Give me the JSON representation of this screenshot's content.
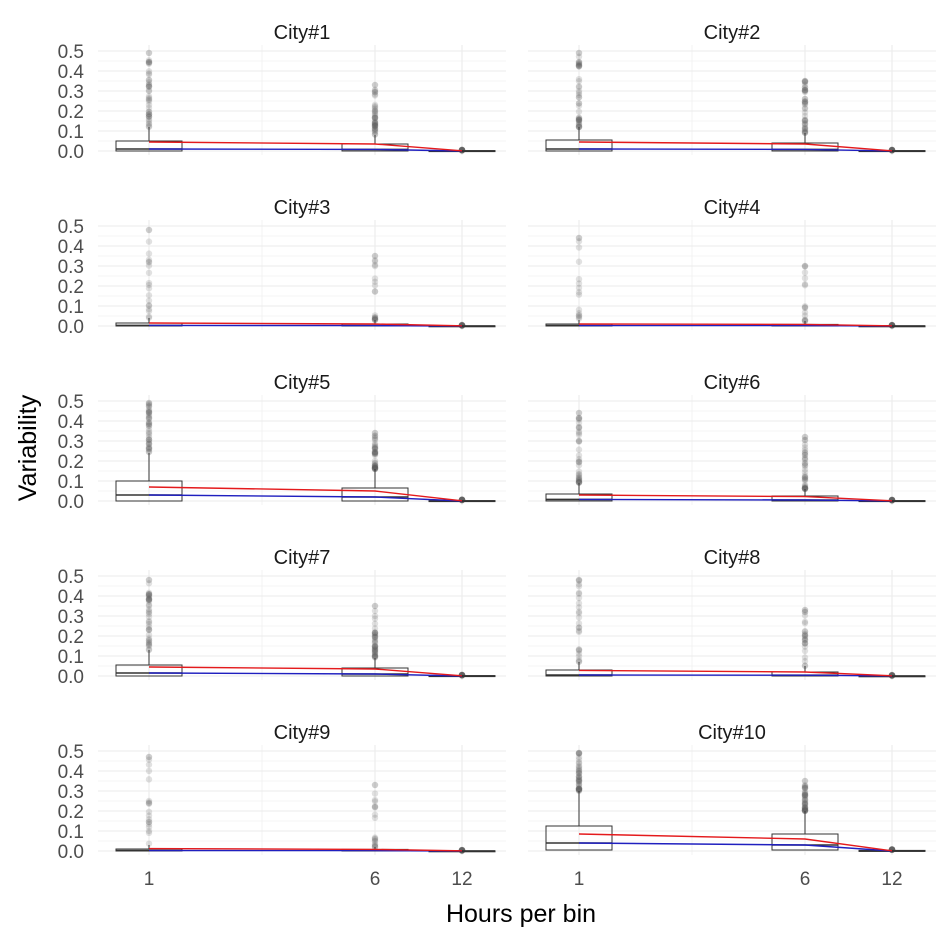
{
  "chart_data": {
    "type": "box",
    "xlabel": "Hours per bin",
    "ylabel": "Variability",
    "x_ticks": [
      "1",
      "6",
      "12"
    ],
    "x_values": [
      1,
      6,
      12
    ],
    "y_ticks": [
      "0.0",
      "0.1",
      "0.2",
      "0.3",
      "0.4",
      "0.5"
    ],
    "ylim": [
      0,
      0.5
    ],
    "grid": true,
    "colors": {
      "mean_line": "#e41a1c",
      "median_line": "#1f1fbf",
      "box": "#333333",
      "outlier": "#595959",
      "grid": "#ebebeb"
    },
    "facets": [
      {
        "title": "City#1",
        "boxes": [
          {
            "x": 1,
            "q1": 0.0,
            "median": 0.01,
            "q3": 0.05,
            "whisker_high": 0.12,
            "mean": 0.045,
            "outlier_max": 0.49,
            "outlier_density": 1.0
          },
          {
            "x": 6,
            "q1": 0.0,
            "median": 0.008,
            "q3": 0.035,
            "whisker_high": 0.08,
            "mean": 0.035,
            "outlier_max": 0.33,
            "outlier_density": 1.0
          },
          {
            "x": 12,
            "q1": 0.0,
            "median": 0.0,
            "q3": 0.002,
            "whisker_high": 0.003,
            "mean": 0.001,
            "outlier_max": 0.006,
            "outlier_density": 0.3
          }
        ]
      },
      {
        "title": "City#2",
        "boxes": [
          {
            "x": 1,
            "q1": 0.0,
            "median": 0.01,
            "q3": 0.055,
            "whisker_high": 0.12,
            "mean": 0.045,
            "outlier_max": 0.49,
            "outlier_density": 1.0
          },
          {
            "x": 6,
            "q1": 0.0,
            "median": 0.008,
            "q3": 0.04,
            "whisker_high": 0.09,
            "mean": 0.035,
            "outlier_max": 0.35,
            "outlier_density": 1.0
          },
          {
            "x": 12,
            "q1": 0.0,
            "median": 0.0,
            "q3": 0.002,
            "whisker_high": 0.003,
            "mean": 0.001,
            "outlier_max": 0.006,
            "outlier_density": 0.3
          }
        ]
      },
      {
        "title": "City#3",
        "boxes": [
          {
            "x": 1,
            "q1": 0.0,
            "median": 0.003,
            "q3": 0.015,
            "whisker_high": 0.04,
            "mean": 0.015,
            "outlier_max": 0.48,
            "outlier_density": 0.45
          },
          {
            "x": 6,
            "q1": 0.0,
            "median": 0.002,
            "q3": 0.01,
            "whisker_high": 0.03,
            "mean": 0.01,
            "outlier_max": 0.35,
            "outlier_density": 0.45
          },
          {
            "x": 12,
            "q1": 0.0,
            "median": 0.0,
            "q3": 0.001,
            "whisker_high": 0.002,
            "mean": 0.001,
            "outlier_max": 0.005,
            "outlier_density": 0.3
          }
        ]
      },
      {
        "title": "City#4",
        "boxes": [
          {
            "x": 1,
            "q1": 0.0,
            "median": 0.002,
            "q3": 0.01,
            "whisker_high": 0.03,
            "mean": 0.01,
            "outlier_max": 0.44,
            "outlier_density": 0.35
          },
          {
            "x": 6,
            "q1": 0.0,
            "median": 0.002,
            "q3": 0.008,
            "whisker_high": 0.025,
            "mean": 0.008,
            "outlier_max": 0.3,
            "outlier_density": 0.35
          },
          {
            "x": 12,
            "q1": 0.0,
            "median": 0.0,
            "q3": 0.001,
            "whisker_high": 0.002,
            "mean": 0.001,
            "outlier_max": 0.005,
            "outlier_density": 0.3
          }
        ]
      },
      {
        "title": "City#5",
        "boxes": [
          {
            "x": 1,
            "q1": 0.0,
            "median": 0.03,
            "q3": 0.1,
            "whisker_high": 0.24,
            "mean": 0.07,
            "outlier_max": 0.49,
            "outlier_density": 1.0
          },
          {
            "x": 6,
            "q1": 0.0,
            "median": 0.02,
            "q3": 0.065,
            "whisker_high": 0.16,
            "mean": 0.05,
            "outlier_max": 0.34,
            "outlier_density": 1.0
          },
          {
            "x": 12,
            "q1": 0.0,
            "median": 0.0,
            "q3": 0.002,
            "whisker_high": 0.004,
            "mean": 0.001,
            "outlier_max": 0.007,
            "outlier_density": 0.3
          }
        ]
      },
      {
        "title": "City#6",
        "boxes": [
          {
            "x": 1,
            "q1": 0.0,
            "median": 0.008,
            "q3": 0.035,
            "whisker_high": 0.09,
            "mean": 0.03,
            "outlier_max": 0.44,
            "outlier_density": 0.9
          },
          {
            "x": 6,
            "q1": 0.0,
            "median": 0.005,
            "q3": 0.025,
            "whisker_high": 0.06,
            "mean": 0.022,
            "outlier_max": 0.32,
            "outlier_density": 0.9
          },
          {
            "x": 12,
            "q1": 0.0,
            "median": 0.0,
            "q3": 0.002,
            "whisker_high": 0.003,
            "mean": 0.001,
            "outlier_max": 0.006,
            "outlier_density": 0.3
          }
        ]
      },
      {
        "title": "City#7",
        "boxes": [
          {
            "x": 1,
            "q1": 0.0,
            "median": 0.015,
            "q3": 0.055,
            "whisker_high": 0.13,
            "mean": 0.045,
            "outlier_max": 0.48,
            "outlier_density": 1.0
          },
          {
            "x": 6,
            "q1": 0.0,
            "median": 0.01,
            "q3": 0.04,
            "whisker_high": 0.09,
            "mean": 0.035,
            "outlier_max": 0.35,
            "outlier_density": 1.0
          },
          {
            "x": 12,
            "q1": 0.0,
            "median": 0.0,
            "q3": 0.002,
            "whisker_high": 0.003,
            "mean": 0.001,
            "outlier_max": 0.006,
            "outlier_density": 0.3
          }
        ]
      },
      {
        "title": "City#8",
        "boxes": [
          {
            "x": 1,
            "q1": 0.0,
            "median": 0.005,
            "q3": 0.03,
            "whisker_high": 0.07,
            "mean": 0.028,
            "outlier_max": 0.48,
            "outlier_density": 0.6
          },
          {
            "x": 6,
            "q1": 0.0,
            "median": 0.004,
            "q3": 0.02,
            "whisker_high": 0.05,
            "mean": 0.02,
            "outlier_max": 0.33,
            "outlier_density": 0.6
          },
          {
            "x": 12,
            "q1": 0.0,
            "median": 0.0,
            "q3": 0.001,
            "whisker_high": 0.002,
            "mean": 0.001,
            "outlier_max": 0.005,
            "outlier_density": 0.3
          }
        ]
      },
      {
        "title": "City#9",
        "boxes": [
          {
            "x": 1,
            "q1": 0.0,
            "median": 0.002,
            "q3": 0.01,
            "whisker_high": 0.03,
            "mean": 0.012,
            "outlier_max": 0.47,
            "outlier_density": 0.45
          },
          {
            "x": 6,
            "q1": 0.0,
            "median": 0.002,
            "q3": 0.008,
            "whisker_high": 0.02,
            "mean": 0.008,
            "outlier_max": 0.33,
            "outlier_density": 0.45
          },
          {
            "x": 12,
            "q1": 0.0,
            "median": 0.0,
            "q3": 0.001,
            "whisker_high": 0.002,
            "mean": 0.001,
            "outlier_max": 0.005,
            "outlier_density": 0.3
          }
        ]
      },
      {
        "title": "City#10",
        "boxes": [
          {
            "x": 1,
            "q1": 0.005,
            "median": 0.04,
            "q3": 0.125,
            "whisker_high": 0.3,
            "mean": 0.085,
            "outlier_max": 0.49,
            "outlier_density": 1.0
          },
          {
            "x": 6,
            "q1": 0.005,
            "median": 0.03,
            "q3": 0.085,
            "whisker_high": 0.2,
            "mean": 0.06,
            "outlier_max": 0.35,
            "outlier_density": 1.0
          },
          {
            "x": 12,
            "q1": 0.0,
            "median": 0.0,
            "q3": 0.003,
            "whisker_high": 0.005,
            "mean": 0.001,
            "outlier_max": 0.008,
            "outlier_density": 0.3
          }
        ]
      }
    ]
  }
}
